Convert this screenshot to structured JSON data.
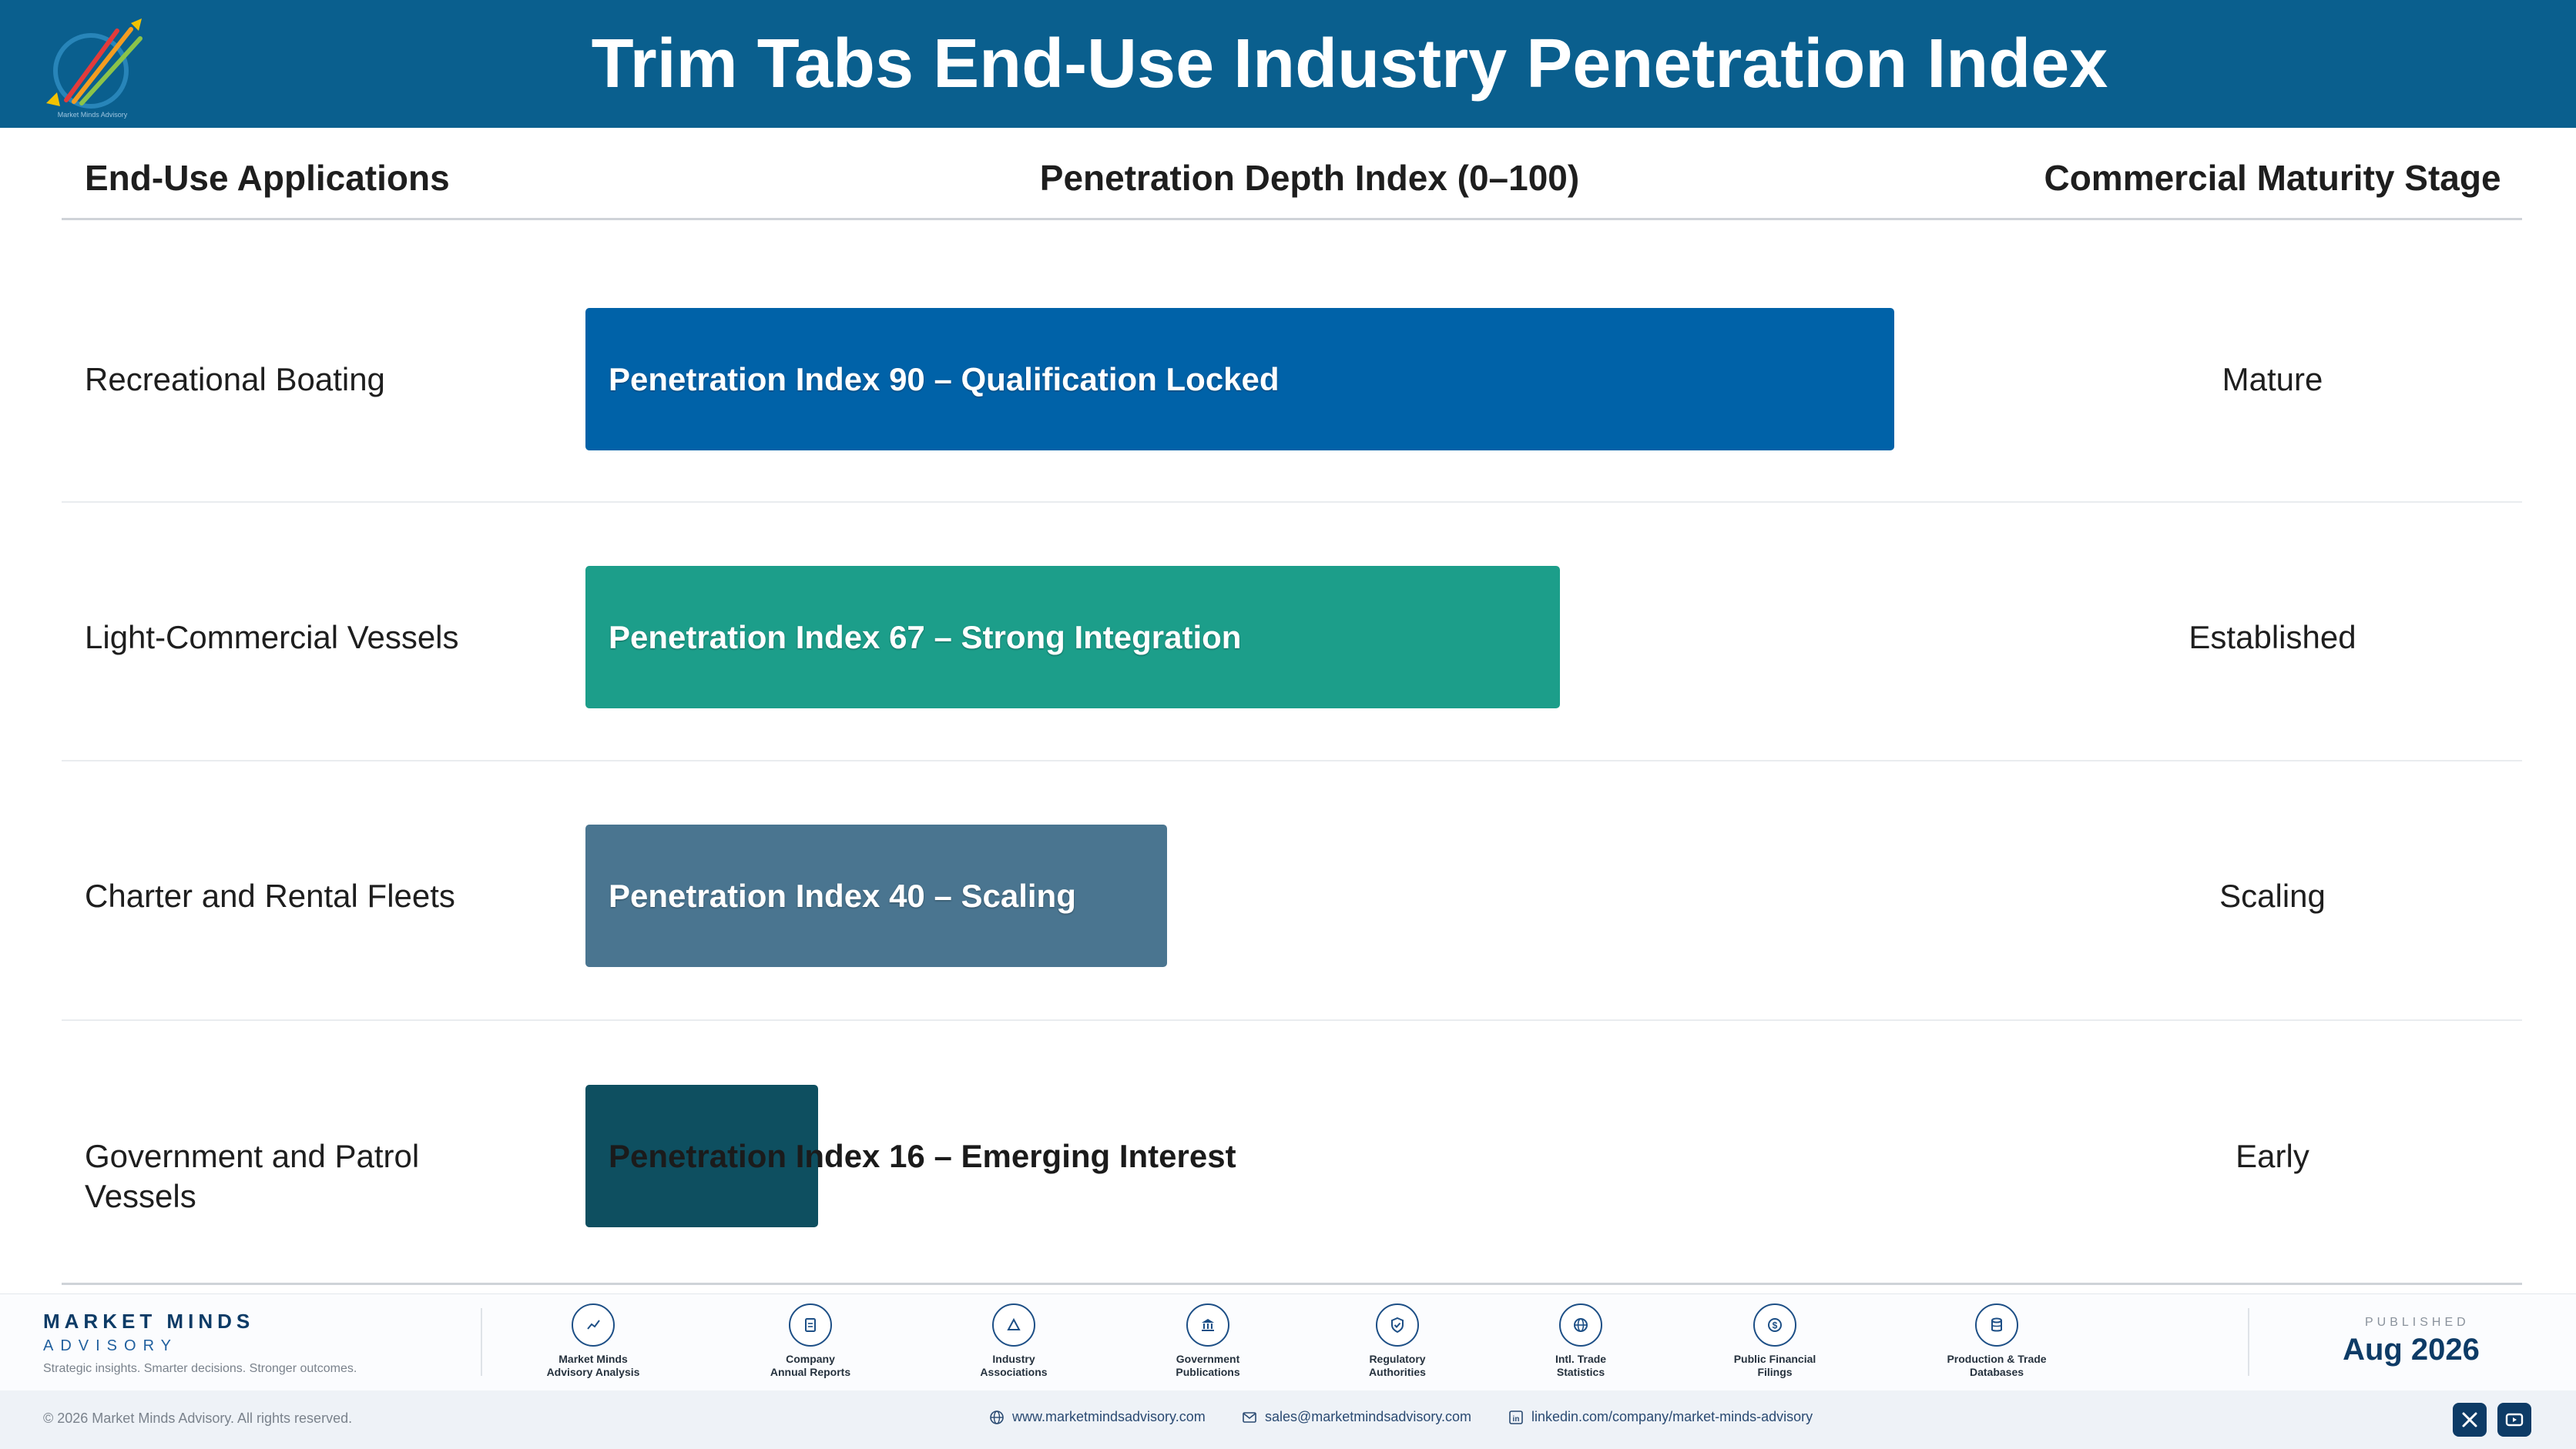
{
  "header": {
    "title": "Trim Tabs End-Use Industry Penetration Index"
  },
  "table": {
    "col_applications": "End-Use Applications",
    "col_index": "Penetration Depth Index (0–100)",
    "col_stage": "Commercial Maturity Stage"
  },
  "chart_data": {
    "type": "bar",
    "orientation": "horizontal",
    "xlim": [
      0,
      100
    ],
    "categories": [
      "Recreational Boating",
      "Light-Commercial Vessels",
      "Charter and Rental Fleets",
      "Government and Patrol Vessels"
    ],
    "values": [
      90,
      67,
      40,
      16
    ],
    "bar_labels": [
      "Penetration Index 90 – Qualification Locked",
      "Penetration Index 67 – Strong Integration",
      "Penetration Index 40 – Scaling",
      "Penetration Index 16 – Emerging Interest"
    ],
    "stages": [
      "Mature",
      "Established",
      "Scaling",
      "Early"
    ],
    "colors": [
      "#0062a8",
      "#1c9e8a",
      "#4a7590",
      "#0e4f60"
    ]
  },
  "footer": {
    "brand_name": "MARKET MINDS",
    "brand_sub": "ADVISORY",
    "tagline": "Strategic insights. Smarter decisions. Stronger outcomes.",
    "sources": [
      {
        "icon": "trend-chart-icon",
        "line1": "Market Minds",
        "line2": "Advisory Analysis"
      },
      {
        "icon": "document-icon",
        "line1": "Company",
        "line2": "Annual Reports"
      },
      {
        "icon": "network-icon",
        "line1": "Industry",
        "line2": "Associations"
      },
      {
        "icon": "government-building-icon",
        "line1": "Government",
        "line2": "Publications"
      },
      {
        "icon": "shield-check-icon",
        "line1": "Regulatory",
        "line2": "Authorities"
      },
      {
        "icon": "globe-icon",
        "line1": "Intl. Trade",
        "line2": "Statistics"
      },
      {
        "icon": "dollar-coin-icon",
        "line1": "Public Financial",
        "line2": "Filings"
      },
      {
        "icon": "database-icon",
        "line1": "Production & Trade",
        "line2": "Databases"
      }
    ],
    "published_label": "PUBLISHED",
    "published_date": "Aug 2026",
    "copyright": "© 2026 Market Minds Advisory. All rights reserved.",
    "website": "www.marketmindsadvisory.com",
    "email": "sales@marketmindsadvisory.com",
    "linkedin": "linkedin.com/company/market-minds-advisory"
  },
  "logo": {
    "caption": "Market Minds Advisory"
  }
}
